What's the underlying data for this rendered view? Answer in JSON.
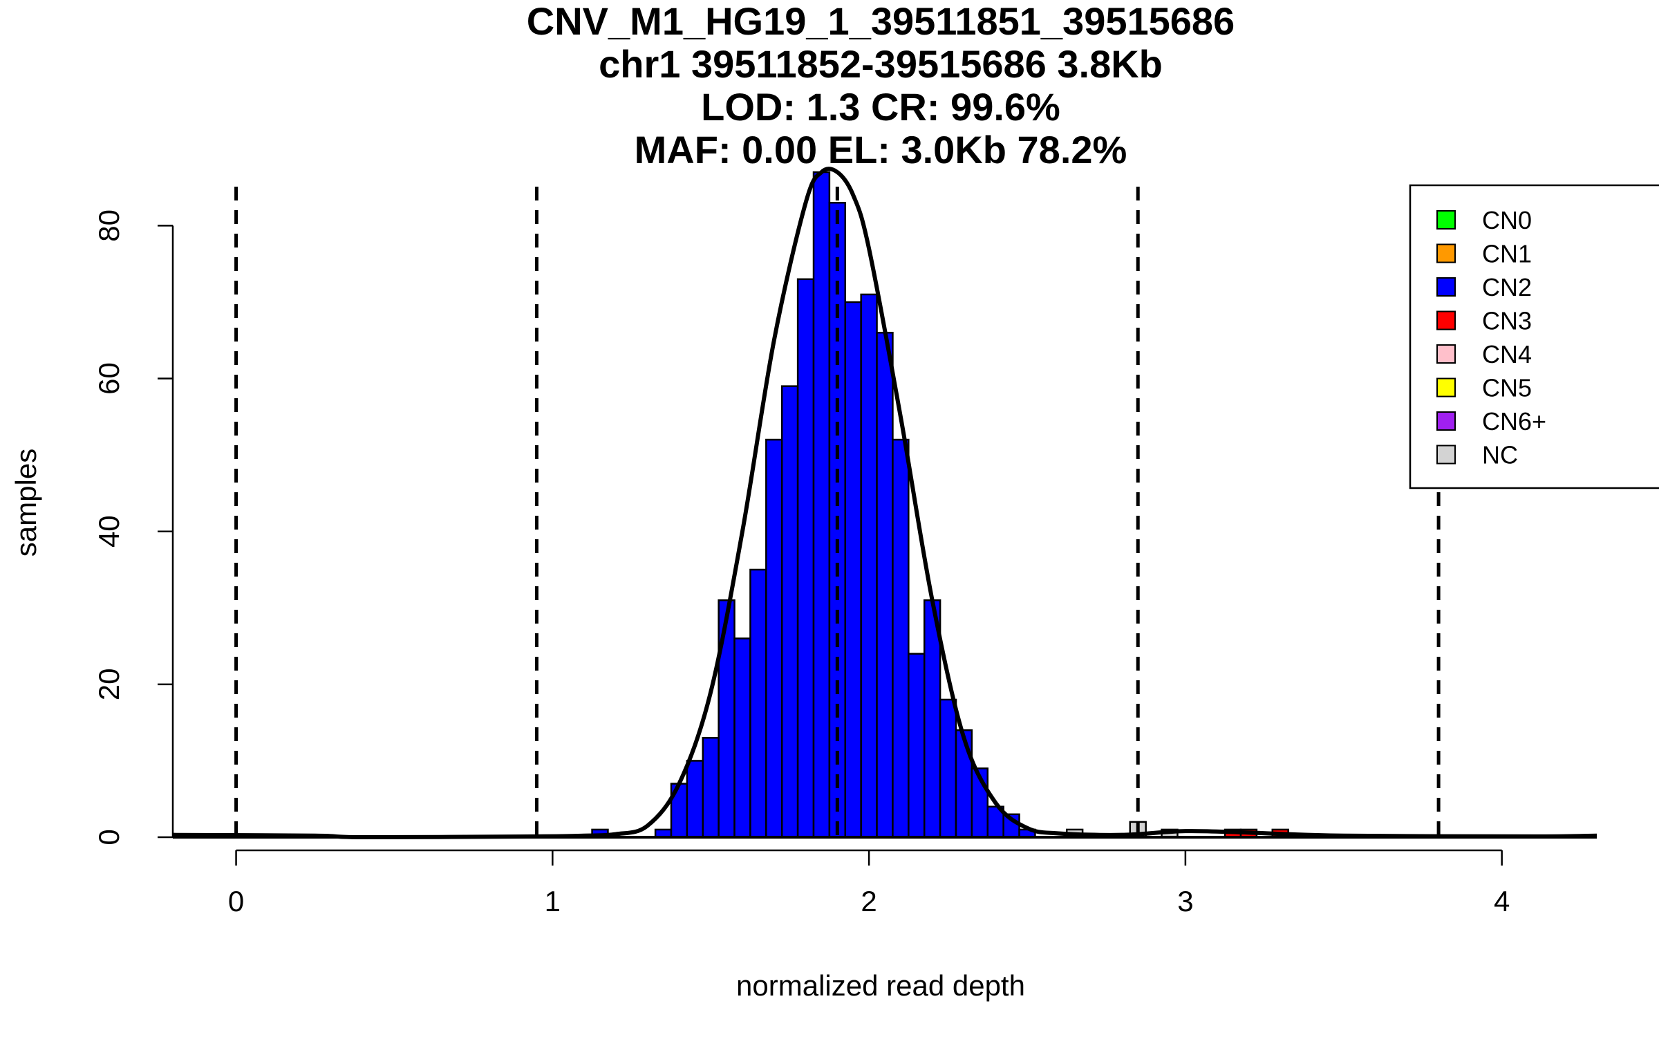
{
  "titles": [
    "CNV_M1_HG19_1_39511851_39515686",
    "chr1 39511852-39515686 3.8Kb",
    "LOD: 1.3 CR: 99.6%",
    "MAF: 0.00 EL: 3.0Kb 78.2%"
  ],
  "chart_data": {
    "type": "bar",
    "subtype": "histogram",
    "xlabel": "normalized read depth",
    "ylabel": "samples",
    "xlim": [
      -0.2,
      4.3
    ],
    "ylim": [
      0,
      87
    ],
    "x_ticks": [
      0,
      1,
      2,
      3,
      4
    ],
    "y_ticks": [
      0,
      20,
      40,
      60,
      80
    ],
    "bin_width": 0.05,
    "vlines": [
      0,
      0.95,
      1.9,
      2.85,
      3.8
    ],
    "legend_position": "top-right",
    "grid": false,
    "series": [
      {
        "name": "CN2",
        "color": "#0000FF",
        "bins": [
          {
            "x0": 1.125,
            "count": 1
          },
          {
            "x0": 1.325,
            "count": 1
          },
          {
            "x0": 1.375,
            "count": 7
          },
          {
            "x0": 1.425,
            "count": 10
          },
          {
            "x0": 1.475,
            "count": 13
          },
          {
            "x0": 1.525,
            "count": 31
          },
          {
            "x0": 1.575,
            "count": 26
          },
          {
            "x0": 1.625,
            "count": 35
          },
          {
            "x0": 1.675,
            "count": 52
          },
          {
            "x0": 1.725,
            "count": 59
          },
          {
            "x0": 1.775,
            "count": 73
          },
          {
            "x0": 1.825,
            "count": 87
          },
          {
            "x0": 1.875,
            "count": 83
          },
          {
            "x0": 1.925,
            "count": 70
          },
          {
            "x0": 1.975,
            "count": 71
          },
          {
            "x0": 2.025,
            "count": 66
          },
          {
            "x0": 2.075,
            "count": 52
          },
          {
            "x0": 2.125,
            "count": 24
          },
          {
            "x0": 2.175,
            "count": 31
          },
          {
            "x0": 2.225,
            "count": 18
          },
          {
            "x0": 2.275,
            "count": 14
          },
          {
            "x0": 2.325,
            "count": 9
          },
          {
            "x0": 2.375,
            "count": 4
          },
          {
            "x0": 2.425,
            "count": 3
          },
          {
            "x0": 2.475,
            "count": 1
          }
        ]
      },
      {
        "name": "CN3",
        "color": "#FF0000",
        "bins": [
          {
            "x0": 3.125,
            "count": 1
          },
          {
            "x0": 3.175,
            "count": 1
          },
          {
            "x0": 3.275,
            "count": 1
          }
        ]
      },
      {
        "name": "NC",
        "color": "#D3D3D3",
        "bins": [
          {
            "x0": 2.625,
            "count": 1
          },
          {
            "x0": 2.825,
            "count": 2
          },
          {
            "x0": 2.925,
            "count": 1
          }
        ]
      }
    ],
    "density_curve": {
      "color": "#000000",
      "x": [
        -0.2,
        0.25,
        0.4,
        0.95,
        1.1,
        1.2,
        1.3,
        1.4,
        1.5,
        1.6,
        1.7,
        1.8,
        1.85,
        1.9,
        1.95,
        2.0,
        2.1,
        2.2,
        2.3,
        2.4,
        2.5,
        2.6,
        2.8,
        3.0,
        3.2,
        3.5,
        4.1,
        4.3
      ],
      "y": [
        0.3,
        0.2,
        0,
        0.1,
        0.2,
        0.4,
        1.5,
        7,
        19,
        40,
        65,
        83,
        87,
        87,
        84,
        77,
        55,
        31,
        13,
        4.5,
        1.2,
        0.5,
        0.3,
        0.8,
        0.6,
        0.2,
        0.1,
        0.2
      ]
    },
    "legend": [
      {
        "label": "CN0",
        "color": "#00FF00"
      },
      {
        "label": "CN1",
        "color": "#FF9900"
      },
      {
        "label": "CN2",
        "color": "#0000FF"
      },
      {
        "label": "CN3",
        "color": "#FF0000"
      },
      {
        "label": "CN4",
        "color": "#FFC0CB"
      },
      {
        "label": "CN5",
        "color": "#FFFF00"
      },
      {
        "label": "CN6+",
        "color": "#A020F0"
      },
      {
        "label": "NC",
        "color": "#D3D3D3"
      }
    ]
  }
}
